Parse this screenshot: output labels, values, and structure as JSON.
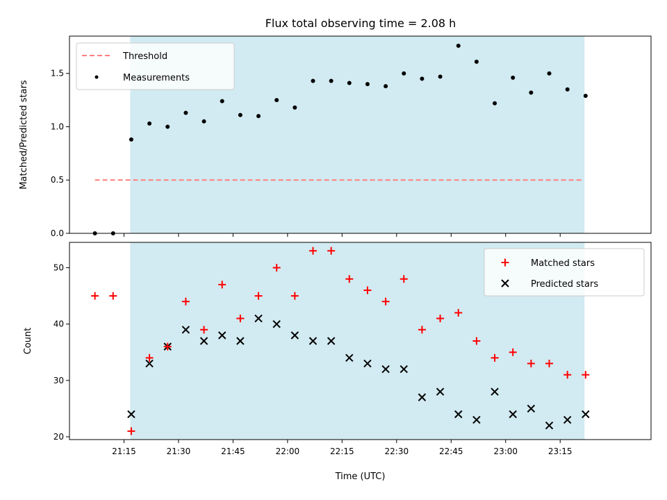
{
  "title": "Flux total observing time = 2.08 h",
  "colors": {
    "shade": "#add8e6",
    "threshold": "#ff7f7f",
    "measurements": "#000000",
    "matched": "#ff0000",
    "predicted": "#000000"
  },
  "chart_data": [
    {
      "type": "scatter",
      "panel": "top",
      "ylabel": "Matched/Predicted stars",
      "ylim": [
        0,
        1.85
      ],
      "yticks": [
        "0.0",
        "0.5",
        "1.0",
        "1.5"
      ],
      "ytick_values": [
        0,
        0.5,
        1.0,
        1.5
      ],
      "legend_position": "upper left",
      "shaded_span": [
        "21:16.7",
        "23:21.7"
      ],
      "threshold": {
        "name": "Threshold",
        "value": 0.5,
        "x_range": [
          "21:07",
          "23:21"
        ]
      },
      "series": [
        {
          "name": "Measurements",
          "x": [
            "21:07",
            "21:12",
            "21:17",
            "21:22",
            "21:27",
            "21:32",
            "21:37",
            "21:42",
            "21:47",
            "21:52",
            "21:57",
            "22:02",
            "22:07",
            "22:12",
            "22:17",
            "22:22",
            "22:27",
            "22:32",
            "22:37",
            "22:42",
            "22:47",
            "22:52",
            "22:57",
            "23:02",
            "23:07",
            "23:12",
            "23:17",
            "23:22"
          ],
          "values": [
            0.0,
            0.0,
            0.88,
            1.03,
            1.0,
            1.13,
            1.05,
            1.24,
            1.11,
            1.1,
            1.25,
            1.18,
            1.43,
            1.43,
            1.41,
            1.4,
            1.38,
            1.5,
            1.45,
            1.47,
            1.76,
            1.61,
            1.22,
            1.46,
            1.32,
            1.5,
            1.35,
            1.29
          ]
        }
      ]
    },
    {
      "type": "scatter",
      "panel": "bottom",
      "xlabel": "Time (UTC)",
      "ylabel": "Count",
      "ylim": [
        19.5,
        54.5
      ],
      "yticks": [
        "20",
        "30",
        "40",
        "50"
      ],
      "ytick_values": [
        20,
        30,
        40,
        50
      ],
      "xticks": [
        "21:15",
        "21:30",
        "21:45",
        "22:00",
        "22:15",
        "22:30",
        "22:45",
        "23:00",
        "23:15"
      ],
      "xlim": [
        "21:00",
        "23:40"
      ],
      "legend_position": "upper right",
      "series": [
        {
          "name": "Matched stars",
          "marker": "plus",
          "x": [
            "21:07",
            "21:12",
            "21:17",
            "21:22",
            "21:27",
            "21:32",
            "21:37",
            "21:42",
            "21:47",
            "21:52",
            "21:57",
            "22:02",
            "22:07",
            "22:12",
            "22:17",
            "22:22",
            "22:27",
            "22:32",
            "22:37",
            "22:42",
            "22:47",
            "22:52",
            "22:57",
            "23:02",
            "23:07",
            "23:12",
            "23:17",
            "23:22"
          ],
          "values": [
            45,
            45,
            21,
            34,
            36,
            44,
            39,
            47,
            41,
            45,
            50,
            45,
            53,
            53,
            48,
            46,
            44,
            48,
            39,
            41,
            42,
            37,
            34,
            35,
            33,
            33,
            31,
            31
          ]
        },
        {
          "name": "Predicted stars",
          "marker": "x",
          "x": [
            "21:17",
            "21:22",
            "21:27",
            "21:32",
            "21:37",
            "21:42",
            "21:47",
            "21:52",
            "21:57",
            "22:02",
            "22:07",
            "22:12",
            "22:17",
            "22:22",
            "22:27",
            "22:32",
            "22:37",
            "22:42",
            "22:47",
            "22:52",
            "22:57",
            "23:02",
            "23:07",
            "23:12",
            "23:17",
            "23:22"
          ],
          "values": [
            24,
            33,
            36,
            39,
            37,
            38,
            37,
            41,
            40,
            38,
            37,
            37,
            34,
            33,
            32,
            32,
            27,
            28,
            24,
            23,
            28,
            24,
            25,
            22,
            23,
            24
          ]
        }
      ]
    }
  ]
}
